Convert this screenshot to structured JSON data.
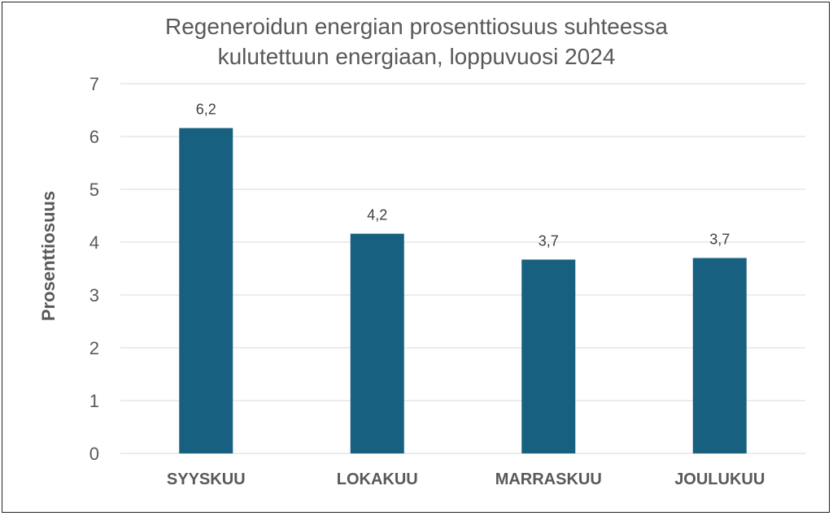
{
  "chart_data": {
    "type": "bar",
    "title": "Regeneroidun energian prosenttiosuus suhteessa kulutettuun energiaan, loppuvuosi 2024",
    "title_lines": [
      "Regeneroidun energian prosenttiosuus suhteessa",
      "kulutettuun energiaan, loppuvuosi 2024"
    ],
    "xlabel": "",
    "ylabel": "Prosenttiosuus",
    "categories": [
      "SYYSKUU",
      "LOKAKUU",
      "MARRASKUU",
      "JOULUKUU"
    ],
    "values": [
      6.16,
      4.16,
      3.67,
      3.7
    ],
    "data_labels": [
      "6,2",
      "4,2",
      "3,7",
      "3,7"
    ],
    "ylim": [
      0,
      7
    ],
    "yticks": [
      "0",
      "1",
      "2",
      "3",
      "4",
      "5",
      "6",
      "7"
    ],
    "grid": true,
    "colors": {
      "bar": "#17607f",
      "grid": "#d9d9d9",
      "text": "#595959"
    }
  }
}
